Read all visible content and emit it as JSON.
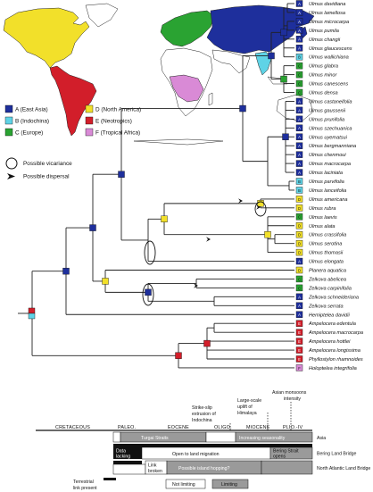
{
  "colors": {
    "A": "#1e2f9c",
    "B": "#5fd3e6",
    "C": "#2aa332",
    "D": "#f2e02a",
    "E": "#d21e2a",
    "F": "#d98ad6",
    "limiting": "#9a9a9a",
    "not_limiting": "#ffffff",
    "timeline_dark": "#111111"
  },
  "legend": {
    "areas": [
      {
        "code": "A",
        "label": "A (East Asia)"
      },
      {
        "code": "B",
        "label": "B (Indochina)"
      },
      {
        "code": "C",
        "label": "C (Europe)"
      },
      {
        "code": "D",
        "label": "D (North America)"
      },
      {
        "code": "E",
        "label": "E (Neotropics)"
      },
      {
        "code": "F",
        "label": "F (Tropical Africa)"
      }
    ],
    "vicariance": "Possible vicariance",
    "dispersal": "Possible dispersal"
  },
  "taxa": [
    {
      "name": "Ulmus davidiana",
      "area": "A"
    },
    {
      "name": "Ulmus lamellosa",
      "area": "A"
    },
    {
      "name": "Ulmus microcarpa",
      "area": "A"
    },
    {
      "name": "Ulmus pumila",
      "area": "A"
    },
    {
      "name": "Ulmus changii",
      "area": "A"
    },
    {
      "name": "Ulmus glaucescens",
      "area": "A"
    },
    {
      "name": "Ulmus wallichiana",
      "area": "B"
    },
    {
      "name": "Ulmus glabra",
      "area": "C"
    },
    {
      "name": "Ulmus minor",
      "area": "C"
    },
    {
      "name": "Ulmus canescens",
      "area": "C"
    },
    {
      "name": "Ulmus densa",
      "area": "C"
    },
    {
      "name": "Ulmus castaneifolia",
      "area": "A"
    },
    {
      "name": "Ulmus gaussenii",
      "area": "A"
    },
    {
      "name": "Ulmus prunifolia",
      "area": "A"
    },
    {
      "name": "Ulmus szechuanica",
      "area": "A"
    },
    {
      "name": "Ulmus uyematsui",
      "area": "A"
    },
    {
      "name": "Ulmus bergmanniana",
      "area": "A"
    },
    {
      "name": "Ulmus chenmoui",
      "area": "A"
    },
    {
      "name": "Ulmus macrocarpa",
      "area": "A"
    },
    {
      "name": "Ulmus laciniata",
      "area": "A"
    },
    {
      "name": "Ulmus parvifolia",
      "area": "B"
    },
    {
      "name": "Ulmus lanceifolia",
      "area": "B"
    },
    {
      "name": "Ulmus americana",
      "area": "D"
    },
    {
      "name": "Ulmus rubra",
      "area": "D"
    },
    {
      "name": "Ulmus laevis",
      "area": "C"
    },
    {
      "name": "Ulmus alata",
      "area": "D"
    },
    {
      "name": "Ulmus crassifolia",
      "area": "D"
    },
    {
      "name": "Ulmus serotina",
      "area": "D"
    },
    {
      "name": "Ulmus thomasii",
      "area": "D"
    },
    {
      "name": "Ulmus elongata",
      "area": "A"
    },
    {
      "name": "Planera aquatica",
      "area": "D"
    },
    {
      "name": "Zelkova abelicea",
      "area": "C"
    },
    {
      "name": "Zelkova carpinifolia",
      "area": "C"
    },
    {
      "name": "Zelkova schneideriana",
      "area": "A"
    },
    {
      "name": "Zelkova serrata",
      "area": "A"
    },
    {
      "name": "Hemiptelea davidii",
      "area": "A"
    },
    {
      "name": "Ampelocera edentula",
      "area": "E"
    },
    {
      "name": "Ampelocera macrocarpa",
      "area": "E"
    },
    {
      "name": "Ampelocera hottlei",
      "area": "E"
    },
    {
      "name": "Ampelocera longissima",
      "area": "E"
    },
    {
      "name": "Phyllostylon rhamnoides",
      "area": "E"
    },
    {
      "name": "Holoptelea integrifolia",
      "area": "F"
    }
  ],
  "tip_codes": [
    "A",
    "A",
    "A",
    "A",
    "A",
    "A",
    "B",
    "C",
    "C",
    "C",
    "C",
    "A",
    "A",
    "A",
    "A",
    "A",
    "A",
    "A",
    "A",
    "A",
    "B",
    "B",
    "D",
    "D",
    "C",
    "D",
    "D",
    "D",
    "D",
    "A",
    "D",
    "C",
    "C",
    "A",
    "A",
    "A",
    "E",
    "E",
    "E",
    "E",
    "E",
    "F"
  ],
  "events": {
    "strike_slip": "Strike-slip extrusion of Indochina",
    "himalaya": "Large-scale uplift of Himalaya",
    "monsoon": "Asian monsoons intensity"
  },
  "epochs": [
    "CRETACEOUS",
    "PALEO.",
    "EOCENE",
    "OLIGO.",
    "MIOCENE",
    "PLIO.-IV"
  ],
  "timeline_rows": {
    "asia": {
      "label": "Asia",
      "segments": [
        "Turgai Straits",
        "Increasing seasonality"
      ]
    },
    "bering": {
      "label": "Bering Land Bridge",
      "segments": [
        "Data lacking",
        "Open to land migration",
        "Bering Strait opens"
      ]
    },
    "north_atlantic": {
      "label": "North Atlantic Land Bridge",
      "segments": [
        "Link broken",
        "Possible island hopping?"
      ]
    }
  },
  "timeline_legend": {
    "terrestrial": "Terrestrial link present",
    "not_limiting": "Not limiting",
    "limiting": "Limiting"
  }
}
